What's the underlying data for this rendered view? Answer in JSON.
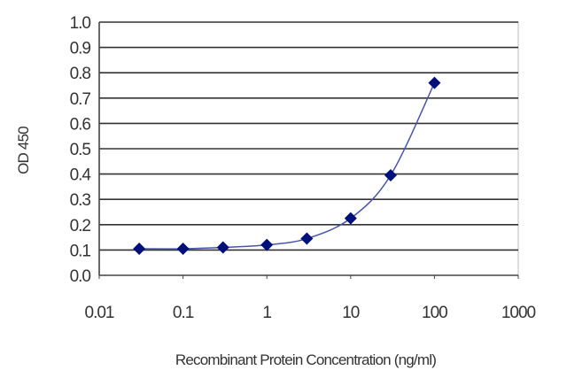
{
  "chart_data": {
    "type": "line",
    "title": "",
    "xlabel": "Recombinant Protein Concentration (ng/ml)",
    "ylabel": "OD 450",
    "xscale": "log",
    "xlim": [
      0.01,
      1000
    ],
    "ylim": [
      0.0,
      1.0
    ],
    "x_tick_labels": [
      "0.01",
      "0.1",
      "1",
      "10",
      "100",
      "1000"
    ],
    "y_tick_labels": [
      "0.0",
      "0.1",
      "0.2",
      "0.3",
      "0.4",
      "0.5",
      "0.6",
      "0.7",
      "0.8",
      "0.9",
      "1.0"
    ],
    "grid": "horizontal",
    "marker": "diamond",
    "line_style": "smooth",
    "series_color": "#00107a",
    "line_color": "#4a55a8",
    "x": [
      0.03,
      0.1,
      0.3,
      1,
      3,
      10,
      30,
      100
    ],
    "y": [
      0.105,
      0.105,
      0.11,
      0.12,
      0.145,
      0.225,
      0.395,
      0.76
    ]
  }
}
